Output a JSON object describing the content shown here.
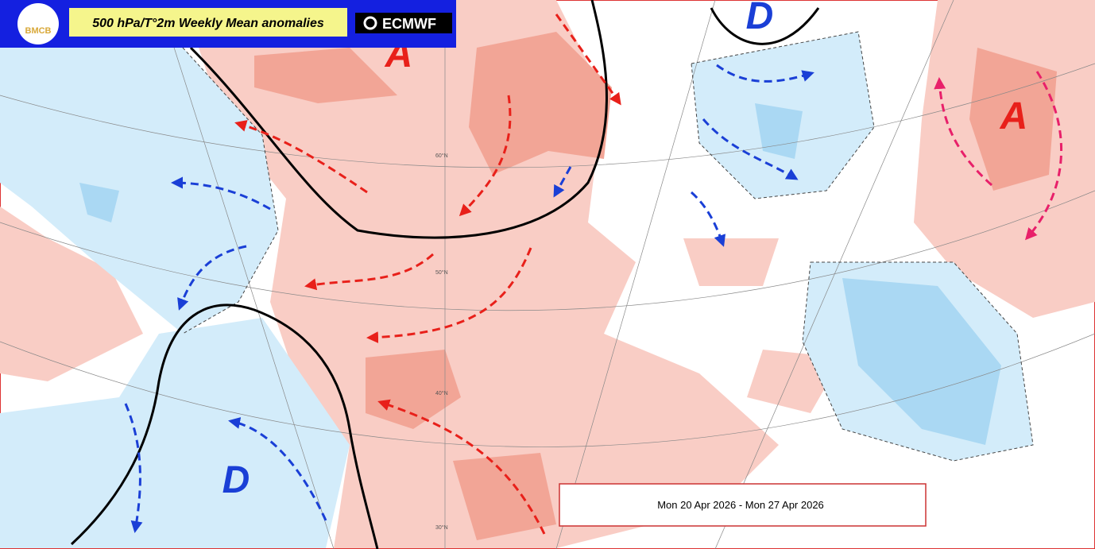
{
  "header": {
    "logo": "BMCB",
    "title": "500 hPa/T°2m Weekly Mean anomalies",
    "brand": "ECMWF"
  },
  "pressure_labels": [
    "A",
    "A",
    "D",
    "D"
  ],
  "latitudes": [
    "60°N",
    "50°N",
    "40°N",
    "30°N"
  ],
  "period": "Mon 20 Apr 2026 - Mon 27 Apr 2026"
}
